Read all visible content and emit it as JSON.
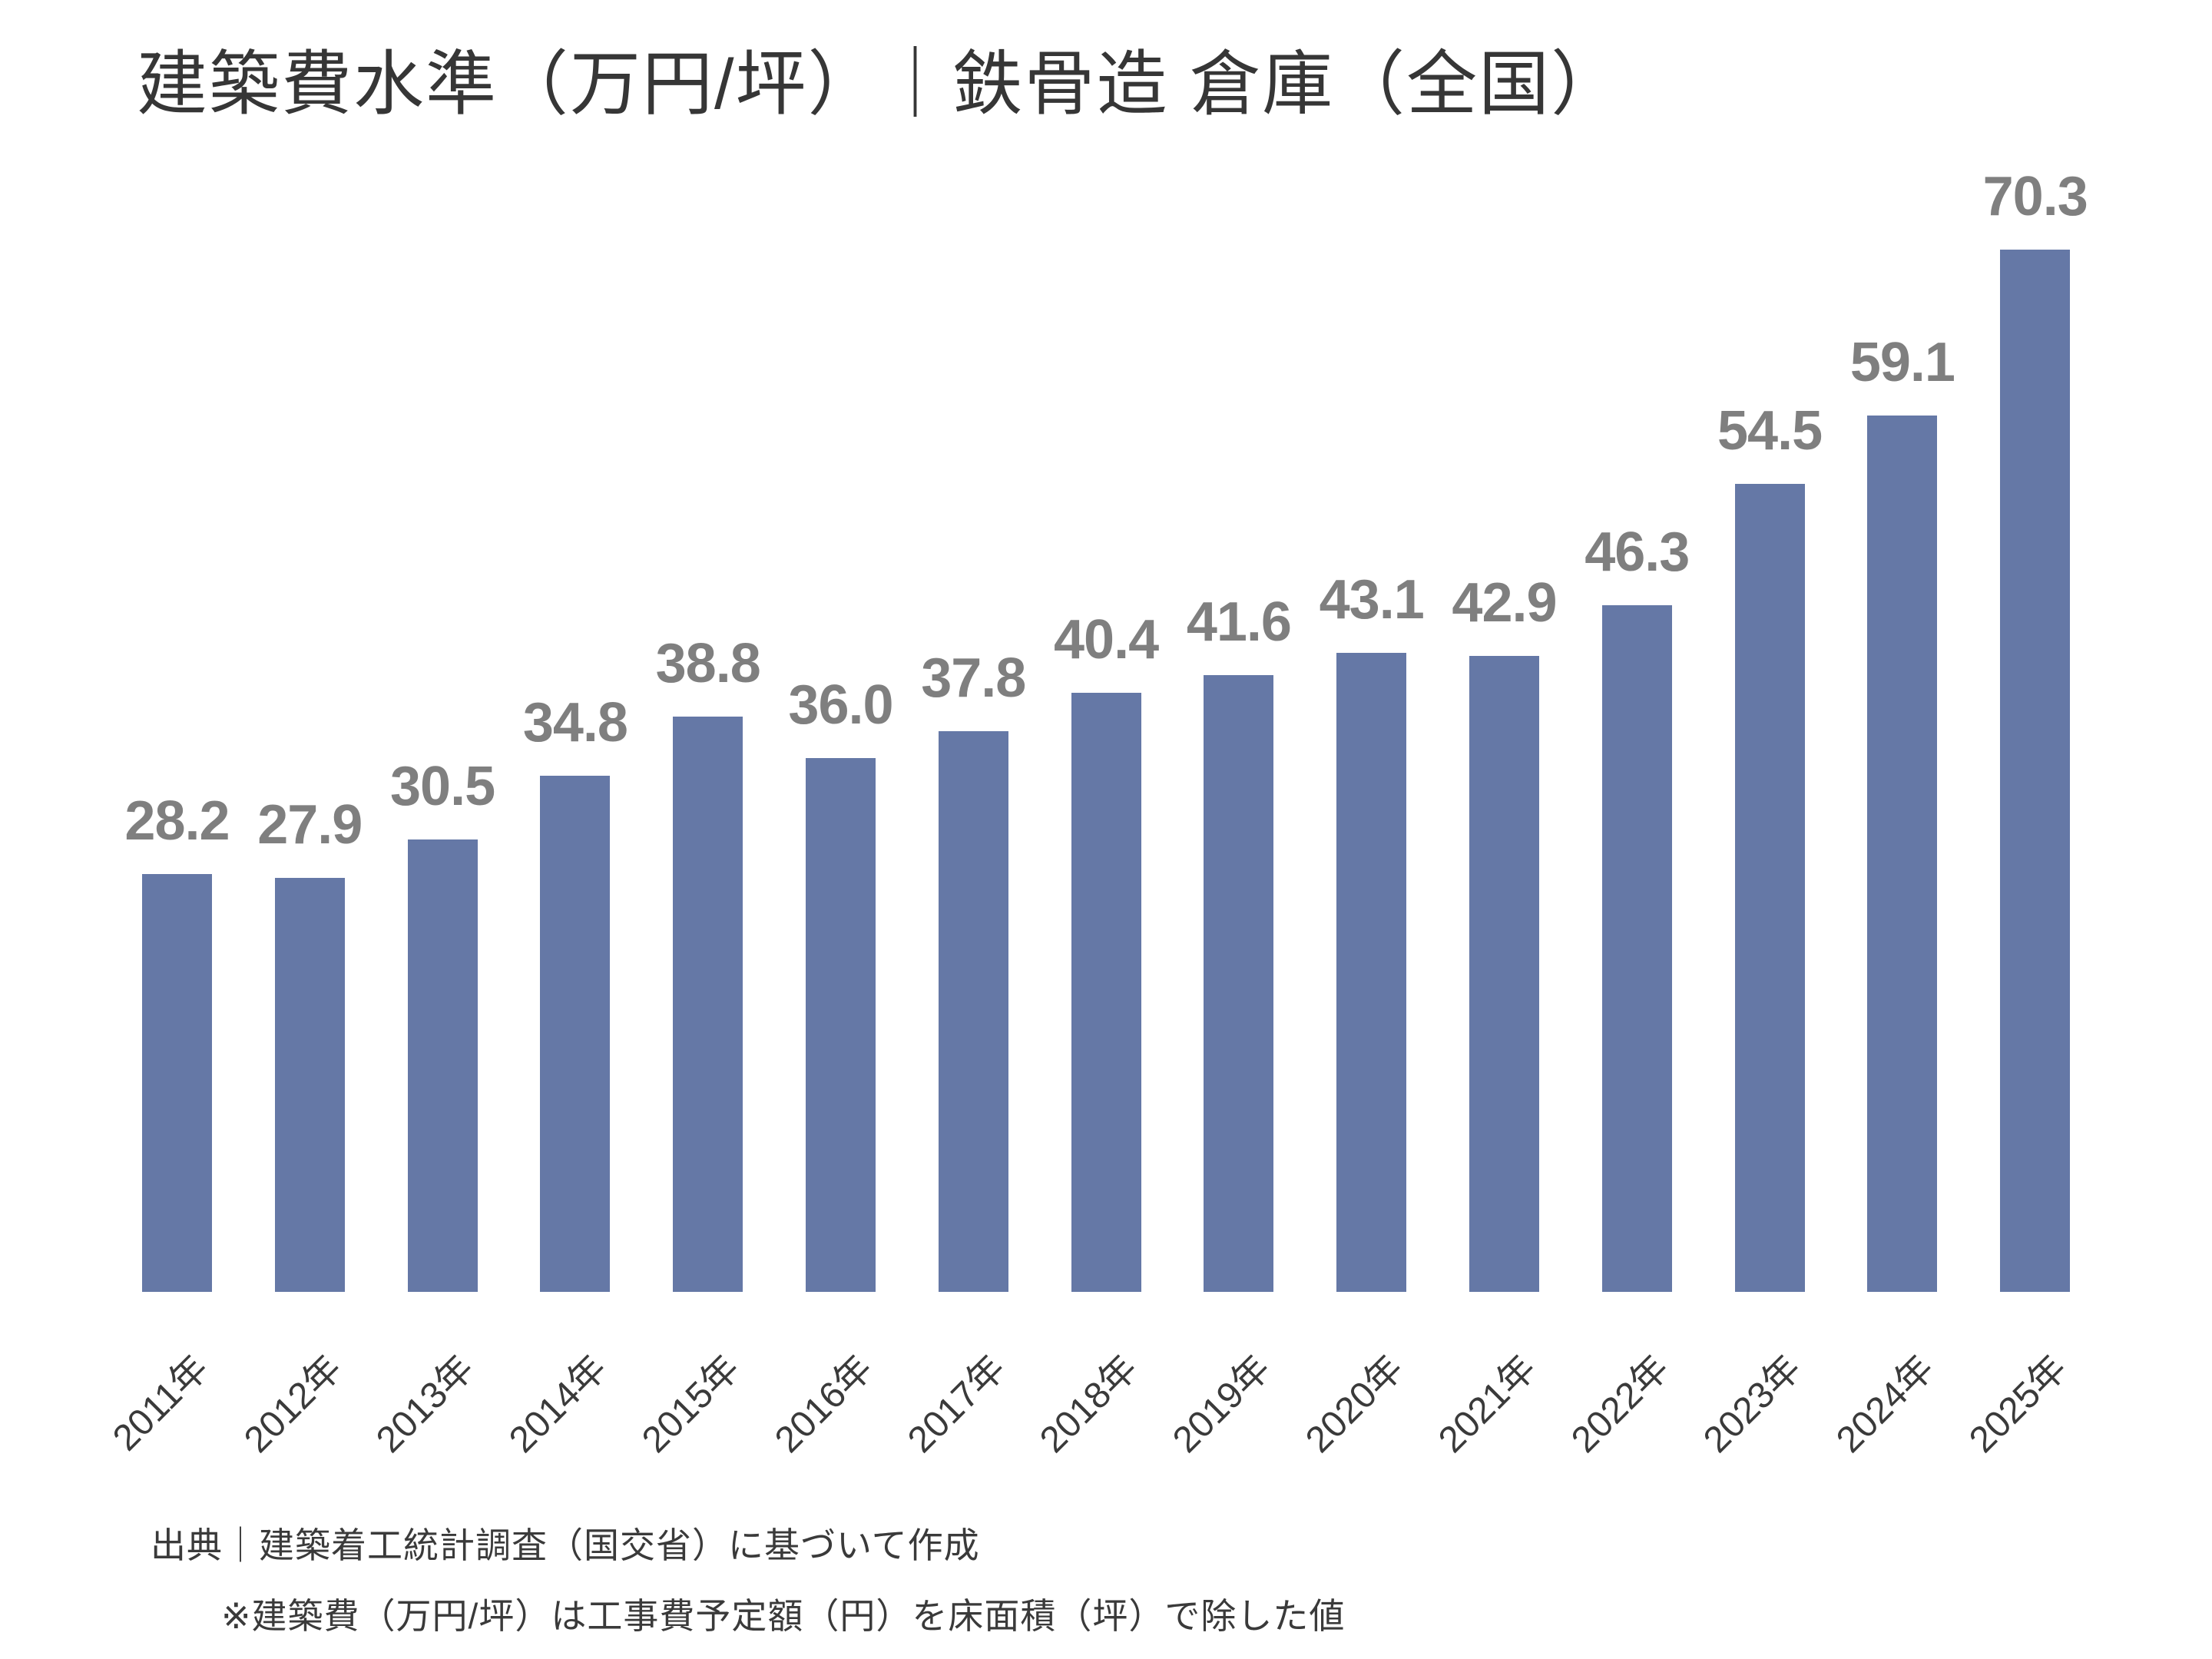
{
  "title": "建築費水準（万円/坪）｜鉄骨造 倉庫（全国）",
  "footer": {
    "source": "出典｜建築着工統計調査（国交省）に基づいて作成",
    "note": "※建築費（万円/坪）は工事費予定額（円）を床面積（坪）で除した値"
  },
  "colors": {
    "bar": "#6578A6",
    "value_label": "#7F7F7F",
    "title_text": "#363636",
    "axis_text": "#3A3A3A",
    "background": "#FFFFFF"
  },
  "chart_data": {
    "type": "bar",
    "title": "建築費水準（万円/坪）｜鉄骨造 倉庫（全国）",
    "categories": [
      "2011年",
      "2012年",
      "2013年",
      "2014年",
      "2015年",
      "2016年",
      "2017年",
      "2018年",
      "2019年",
      "2020年",
      "2021年",
      "2022年",
      "2023年",
      "2024年",
      "2025年"
    ],
    "values": [
      28.2,
      27.9,
      30.5,
      34.8,
      38.8,
      36.0,
      37.8,
      40.4,
      41.6,
      43.1,
      42.9,
      46.3,
      54.5,
      59.1,
      70.3
    ],
    "value_label_decimals": 1,
    "xlabel": "",
    "ylabel": "",
    "ylim": [
      0,
      75
    ],
    "grid": false,
    "legend": false,
    "data_labels": true,
    "x_tick_rotation": -45,
    "axes_lines": false
  }
}
